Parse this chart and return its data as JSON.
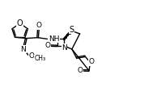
{
  "bg_color": "#ffffff",
  "line_color": "#000000",
  "lw": 1.0,
  "fs": 6.5,
  "figsize": [
    1.78,
    1.08
  ],
  "dpi": 100,
  "xlim": [
    0,
    9.5
  ],
  "ylim": [
    0,
    5.8
  ]
}
